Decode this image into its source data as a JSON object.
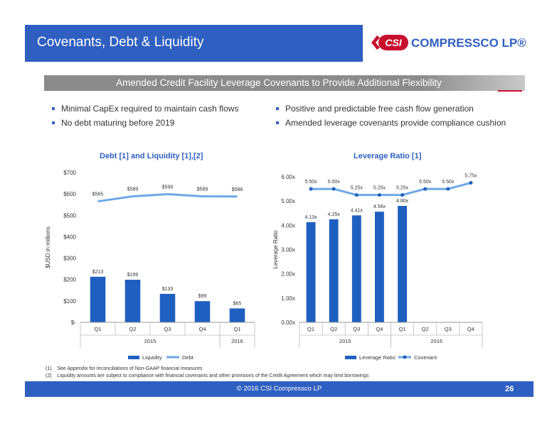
{
  "header": {
    "title": "Covenants, Debt & Liquidity",
    "logo_mark": "CSI",
    "logo_text": "COMPRESSCO LP®"
  },
  "subtitle": "Amended Credit Facility Leverage Covenants to Provide Additional Flexibility",
  "bullets_left": [
    "Minimal CapEx required to maintain cash flows",
    "No debt maturing before 2019"
  ],
  "bullets_right": [
    "Positive and predictable free cash flow generation",
    "Amended leverage covenants provide compliance cushion"
  ],
  "colors": {
    "brand_blue": "#2f5fc1",
    "bar_blue": "#1f5fbf",
    "line_blue": "#6fa8e8",
    "accent_red": "#c8102e",
    "banner_gray": "#8b8b8b"
  },
  "chart_data": [
    {
      "type": "bar",
      "title": "Debt [1] and Liquidity [1],[2]",
      "ylabel": "$USD in millions",
      "ylim": [
        0,
        700
      ],
      "yticks": [
        "$-",
        "$100",
        "$200",
        "$300",
        "$400",
        "$500",
        "$600",
        "$700"
      ],
      "categories": [
        "Q1",
        "Q2",
        "Q3",
        "Q4",
        "Q1"
      ],
      "groups": [
        {
          "label": "2015",
          "span": 4
        },
        {
          "label": "2016",
          "span": 1
        }
      ],
      "series": [
        {
          "name": "Liquidity",
          "kind": "bar",
          "values": [
            213,
            199,
            133,
            99,
            65
          ],
          "labels": [
            "$213",
            "$199",
            "$133",
            "$99",
            "$65"
          ]
        },
        {
          "name": "Debt",
          "kind": "line",
          "values": [
            565,
            589,
            599,
            589,
            588
          ],
          "labels": [
            "$565",
            "$589",
            "$599",
            "$589",
            "$588"
          ]
        }
      ],
      "legend_position": "bottom"
    },
    {
      "type": "bar",
      "title": "Leverage Ratio [1]",
      "ylabel": "Leverage Ratio",
      "ylim": [
        0,
        6
      ],
      "yticks": [
        "0.00x",
        "1.00x",
        "2.00x",
        "3.00x",
        "4.00x",
        "5.00x",
        "6.00x"
      ],
      "categories": [
        "Q1",
        "Q2",
        "Q3",
        "Q4",
        "Q1",
        "Q2",
        "Q3",
        "Q4"
      ],
      "groups": [
        {
          "label": "2015",
          "span": 4
        },
        {
          "label": "2016",
          "span": 4
        }
      ],
      "series": [
        {
          "name": "Leverage Ratio",
          "kind": "bar",
          "values": [
            4.13,
            4.25,
            4.41,
            4.56,
            4.8,
            null,
            null,
            null
          ],
          "labels": [
            "4.13x",
            "4.25x",
            "4.41x",
            "4.56x",
            "4.80x",
            "",
            "",
            ""
          ]
        },
        {
          "name": "Covenant",
          "kind": "line",
          "values": [
            5.5,
            5.5,
            5.25,
            5.25,
            5.25,
            5.5,
            5.5,
            5.75
          ],
          "labels": [
            "5.50x",
            "5.50x",
            "5.25x",
            "5.25x",
            "5.25x",
            "5.50x",
            "5.50x",
            "5.75x"
          ]
        }
      ],
      "legend_position": "bottom"
    }
  ],
  "footnotes": [
    {
      "num": "(1)",
      "text": "See Appendix for reconciliations of Non-GAAP financial measures"
    },
    {
      "num": "(2)",
      "text": "Liquidity amounts are subject to compliance with financial covenants and other provisions of the Credit Agreement which may limit borrowings"
    }
  ],
  "footer": {
    "copyright": "© 2016 CSI Compressco LP",
    "page": "26"
  }
}
